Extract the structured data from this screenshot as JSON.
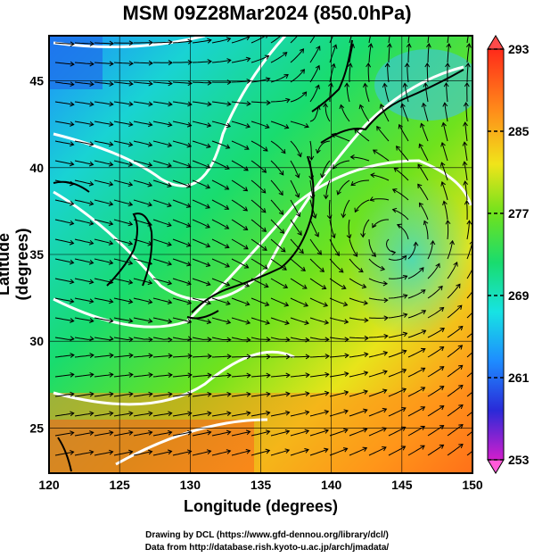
{
  "title": "MSM 09Z28Mar2024 (850.0hPa)",
  "xlabel": "Longitude (degrees)",
  "ylabel": "Latitude  (degrees)",
  "credits": [
    "Drawing by DCL (https://www.gfd-dennou.org/library/dcl/)",
    "Data from http://database.rish.kyoto-u.ac.jp/arch/jmadata/"
  ],
  "map": {
    "lon_range": [
      120,
      150
    ],
    "lat_range": [
      22.4,
      47.6
    ],
    "x_ticks": [
      "120",
      "125",
      "130",
      "135",
      "140",
      "145",
      "150"
    ],
    "y_ticks": [
      "25",
      "30",
      "35",
      "40",
      "45"
    ],
    "field": "temperature (K) with wind streamlines",
    "cyclone_center": [
      145,
      35
    ]
  },
  "colorbar": {
    "min": 253,
    "max": 293,
    "tick_labels": [
      "293",
      "285",
      "277",
      "269",
      "261",
      "253"
    ],
    "colors": [
      "#d21ecc",
      "#2a2ad8",
      "#1e8cff",
      "#17e3e3",
      "#19dc6e",
      "#6fe21d",
      "#f0e41a",
      "#ff8c1a",
      "#ff2a1a"
    ]
  }
}
